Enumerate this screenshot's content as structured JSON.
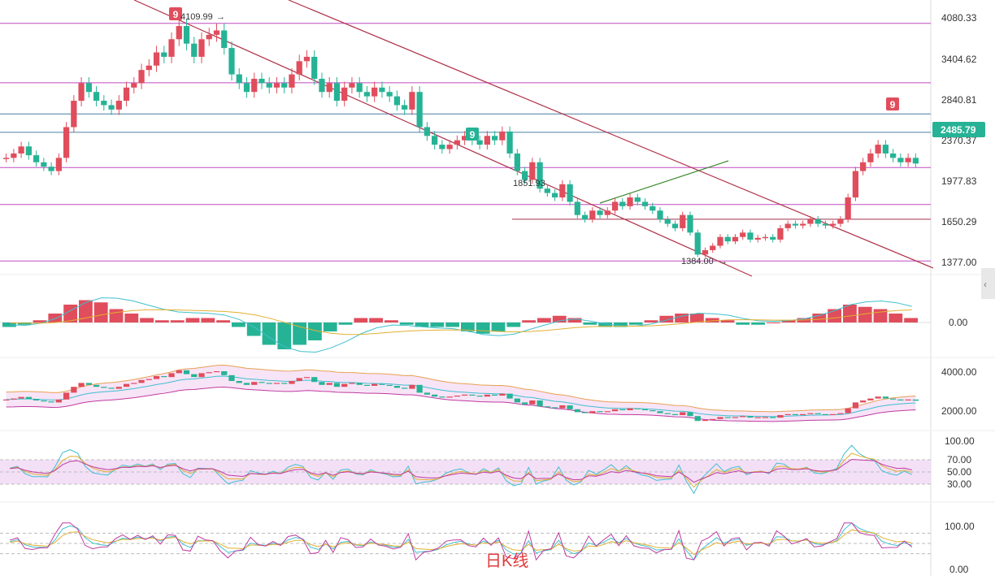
{
  "colors": {
    "up": "#e04d5c",
    "down": "#26b395",
    "price_tag": "#26b395",
    "magenta_line": "#c04cc0",
    "blue_line": "#4a7fa0",
    "red_line": "#a0304a",
    "channel": "#b0324a",
    "trend_green": "#3a8a2a",
    "ma_fast": "#3fbfd0",
    "ma_slow": "#e0b030",
    "band_upper": "#e8a050",
    "band_lower": "#c03aa0",
    "band_fill": "#f3d8f3",
    "rsi_zone": "#f0d8f5",
    "kdj_k": "#3fbfd0",
    "kdj_d": "#e0b030",
    "kdj_j": "#c03aa0"
  },
  "main_axis": {
    "ticks": [
      "4080.33",
      "3404.62",
      "2840.81",
      "2370.37",
      "1977.83",
      "1650.29",
      "1377.00"
    ],
    "current_price": "2485.79",
    "ylim": [
      1250,
      4300
    ]
  },
  "annotations": {
    "high_label": "4109.99",
    "mid_label": "1851.93",
    "low_label": "1384.00",
    "td_top": "9",
    "td_bottom": "9",
    "td_right": "9"
  },
  "macd_axis": {
    "ticks": [
      "0.00"
    ]
  },
  "band_axis": {
    "ticks": [
      "4000.00",
      "2000.00"
    ]
  },
  "rsi_axis": {
    "ticks": [
      "100.00",
      "70.00",
      "50.00",
      "30.00"
    ]
  },
  "kdj_axis": {
    "ticks": [
      "100.00",
      "0.00"
    ]
  },
  "caption": "日K线",
  "chart_data": {
    "type": "candlestick",
    "timeframe": "日K线",
    "ylim": [
      1250,
      4300
    ],
    "support_resistance": [
      4080.33,
      3404.62,
      3050,
      2840.81,
      2440,
      2020,
      1851.93,
      1377.0
    ],
    "price_path_close": [
      2550,
      2600,
      2680,
      2580,
      2500,
      2450,
      2400,
      2550,
      2900,
      3200,
      3400,
      3300,
      3200,
      3150,
      3100,
      3200,
      3350,
      3400,
      3550,
      3600,
      3750,
      3700,
      3900,
      4050,
      3850,
      3700,
      3900,
      3950,
      4000,
      3800,
      3500,
      3400,
      3300,
      3450,
      3400,
      3350,
      3400,
      3350,
      3500,
      3650,
      3700,
      3450,
      3300,
      3400,
      3200,
      3350,
      3400,
      3300,
      3250,
      3350,
      3300,
      3250,
      3150,
      3100,
      3300,
      2900,
      2800,
      2700,
      2650,
      2700,
      2750,
      2800,
      2750,
      2700,
      2800,
      2750,
      2850,
      2600,
      2400,
      2300,
      2500,
      2200,
      2150,
      2100,
      2250,
      2050,
      1900,
      1850,
      1950,
      1900,
      1950,
      2050,
      2000,
      2100,
      2050,
      2000,
      1950,
      1850,
      1800,
      1750,
      1900,
      1700,
      1450,
      1500,
      1550,
      1650,
      1600,
      1650,
      1700,
      1620,
      1640,
      1650,
      1620,
      1750,
      1800,
      1780,
      1800,
      1850,
      1800,
      1780,
      1800,
      1850,
      2100,
      2400,
      2500,
      2600,
      2700,
      2600,
      2550,
      2500,
      2550,
      2485.79
    ],
    "macd_histogram": [
      -0.1,
      -0.05,
      0.05,
      0.2,
      0.4,
      0.5,
      0.45,
      0.3,
      0.2,
      0.1,
      0.05,
      0.05,
      0.1,
      0.1,
      0.05,
      -0.1,
      -0.3,
      -0.5,
      -0.6,
      -0.5,
      -0.4,
      -0.2,
      -0.05,
      0.1,
      0.1,
      0.05,
      -0.05,
      -0.1,
      -0.1,
      -0.1,
      -0.2,
      -0.25,
      -0.2,
      -0.1,
      0.05,
      0.1,
      0.15,
      0.1,
      -0.05,
      -0.1,
      -0.1,
      -0.05,
      0.05,
      0.15,
      0.2,
      0.2,
      0.1,
      0.05,
      -0.05,
      -0.05,
      0.0,
      0.05,
      0.1,
      0.2,
      0.3,
      0.4,
      0.35,
      0.3,
      0.2,
      0.1
    ],
    "rsi_levels": [
      100,
      70,
      50,
      30
    ],
    "kdj_range": [
      0,
      100
    ]
  }
}
